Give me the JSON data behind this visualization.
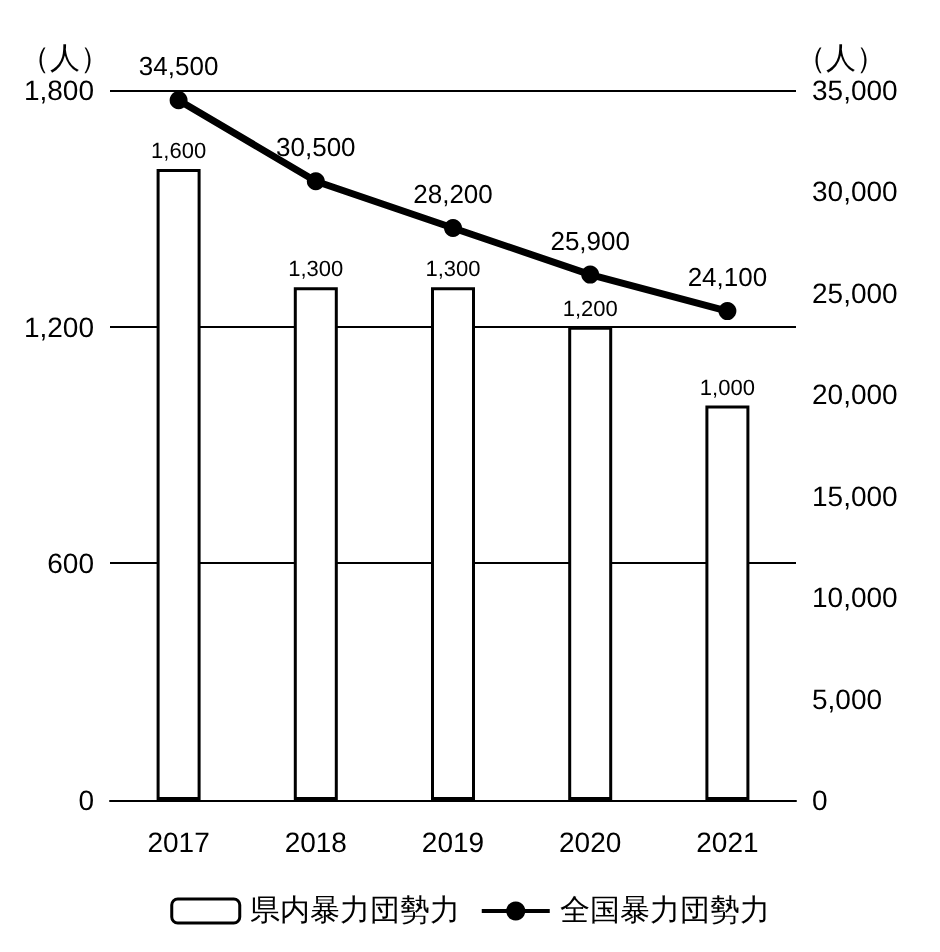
{
  "chart_data": {
    "type": "bar",
    "categories": [
      "2017",
      "2018",
      "2019",
      "2020",
      "2021"
    ],
    "ylabel": "（人）",
    "y2label": "（人）",
    "series": [
      {
        "name": "県内暴力団勢力",
        "color": "#ffffff",
        "values": [
          1600,
          1300,
          1300,
          1200,
          1000
        ],
        "value_labels": [
          "1,600",
          "1,300",
          "1,300",
          "1,200",
          "1,000"
        ]
      },
      {
        "name": "全国暴力団勢力",
        "type": "line",
        "axis": "y2",
        "color": "#000000",
        "marker": "circle",
        "values": [
          34500,
          30500,
          28200,
          25900,
          24100
        ],
        "value_labels": [
          "34,500",
          "30,500",
          "28,200",
          "25,900",
          "24,100"
        ]
      }
    ],
    "ylim": [
      0,
      1800
    ],
    "yticks": [
      {
        "value": 0,
        "label": "0"
      },
      {
        "value": 600,
        "label": "600"
      },
      {
        "value": 1200,
        "label": "1,200"
      },
      {
        "value": 1800,
        "label": "1,800"
      }
    ],
    "y2lim": [
      0,
      35000
    ],
    "y2ticks": [
      {
        "value": 0,
        "label": "0"
      },
      {
        "value": 5000,
        "label": "5,000"
      },
      {
        "value": 10000,
        "label": "10,000"
      },
      {
        "value": 15000,
        "label": "15,000"
      },
      {
        "value": 20000,
        "label": "20,000"
      },
      {
        "value": 25000,
        "label": "25,000"
      },
      {
        "value": 30000,
        "label": "30,000"
      },
      {
        "value": 35000,
        "label": "35,000"
      }
    ],
    "grid": "y",
    "legend": "bottom"
  }
}
